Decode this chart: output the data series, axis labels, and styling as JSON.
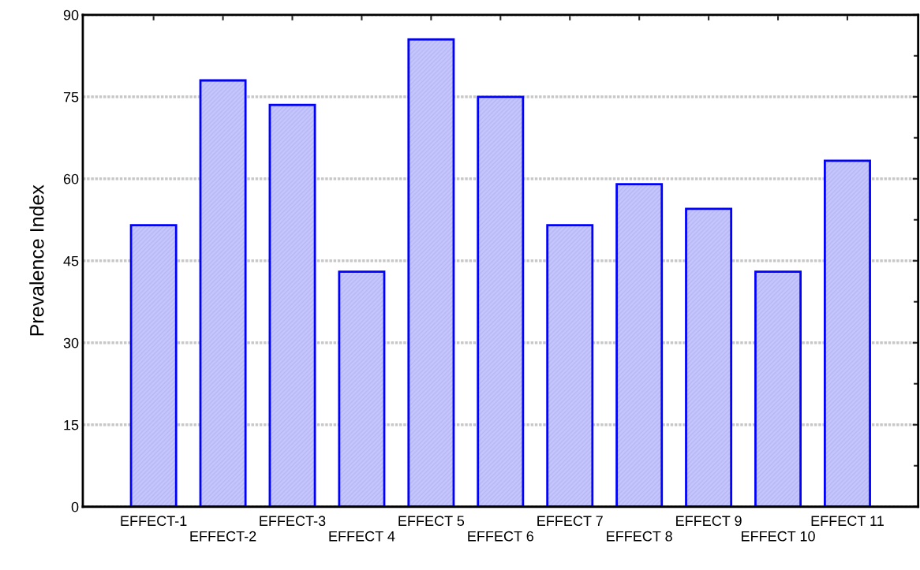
{
  "chart_data": {
    "type": "bar",
    "ylabel": "Prevalence Index",
    "categories": [
      "EFFECT-1",
      "EFFECT-2",
      "EFFECT-3",
      "EFFECT 4",
      "EFFECT 5",
      "EFFECT 6",
      "EFFECT 7",
      "EFFECT 8",
      "EFFECT 9",
      "EFFECT 10",
      "EFFECT 11"
    ],
    "values": [
      51.5,
      78,
      73.5,
      43,
      85.5,
      75,
      51.5,
      59,
      54.5,
      43,
      63.3
    ],
    "color": "#0000ff",
    "ylim": [
      0,
      90
    ],
    "yticks": [
      0,
      15,
      30,
      45,
      60,
      75,
      90
    ],
    "grid": "y"
  }
}
